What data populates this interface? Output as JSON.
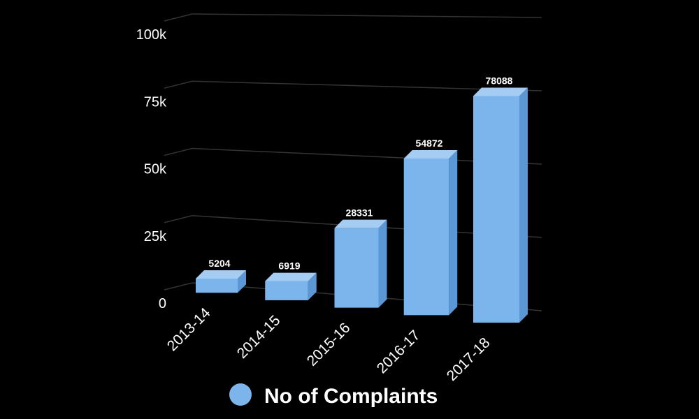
{
  "chart_data": {
    "type": "bar",
    "style": "3d-perspective",
    "categories": [
      "2013-14",
      "2014-15",
      "2015-16",
      "2016-17",
      "2017-18"
    ],
    "series": [
      {
        "name": "No of Complaints",
        "values": [
          5204,
          6919,
          28331,
          54872,
          78088
        ],
        "color": "#7cb5ec"
      }
    ],
    "data_labels": [
      "5204",
      "6919",
      "28331",
      "54872",
      "78088"
    ],
    "y_ticks": [
      0,
      25000,
      50000,
      75000,
      100000
    ],
    "y_tick_labels": [
      "0",
      "25k",
      "50k",
      "75k",
      "100k"
    ],
    "ylim": [
      0,
      100000
    ],
    "grid": true,
    "legend_position": "bottom-center",
    "background": "#000000"
  }
}
